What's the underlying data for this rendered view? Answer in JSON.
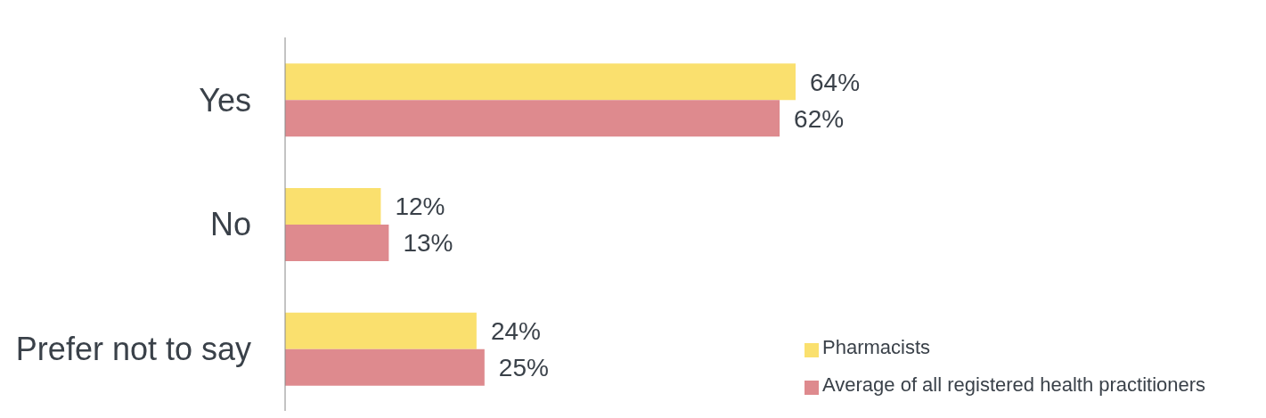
{
  "chart_data": {
    "type": "bar",
    "orientation": "horizontal",
    "categories": [
      "Yes",
      "No",
      "Prefer not to say"
    ],
    "series": [
      {
        "name": "Pharmacists",
        "color": "#fae06e",
        "values": [
          64,
          12,
          24
        ],
        "value_labels": [
          "64%",
          "12%",
          "24%"
        ]
      },
      {
        "name": "Average of all registered health practitioners",
        "color": "#de8a8e",
        "values": [
          62,
          13,
          25
        ],
        "value_labels": [
          "62%",
          "13%",
          "25%"
        ]
      }
    ],
    "legend": "bottom right",
    "grid": false,
    "tick_labels": "y"
  }
}
